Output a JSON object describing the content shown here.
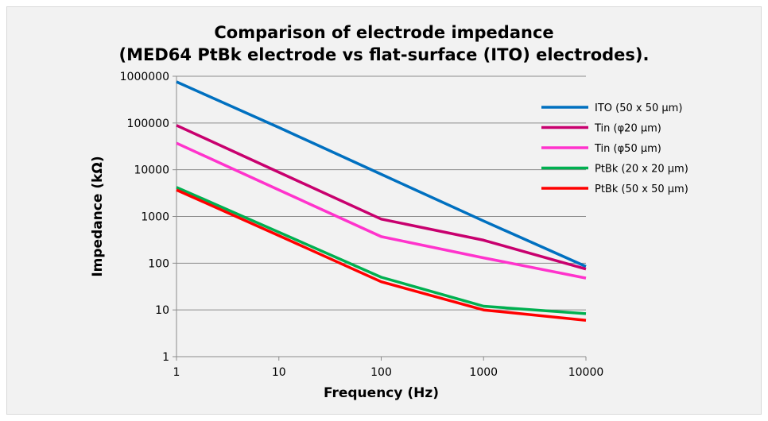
{
  "chart_data": {
    "type": "line",
    "title": [
      "Comparison of electrode impedance",
      "(MED64 PtBk electrode vs flat-surface (ITO) electrodes)."
    ],
    "xlabel": "Frequency (Hz)",
    "ylabel": "Impedance (kΩ)",
    "xscale": "log",
    "yscale": "log",
    "xlim": [
      1,
      10000
    ],
    "ylim": [
      1,
      1000000
    ],
    "x_ticks": [
      "1",
      "10",
      "100",
      "1000",
      "10000"
    ],
    "y_ticks": [
      "1",
      "10",
      "100",
      "1000",
      "10000",
      "100000",
      "1000000"
    ],
    "grid": "horizontal",
    "legend_position": "right",
    "x": [
      1,
      10,
      100,
      1000,
      10000
    ],
    "series": [
      {
        "name": "ITO (50 x 50 µm)",
        "color": "#0070c0",
        "values": [
          760000,
          80000,
          8000,
          800,
          85
        ]
      },
      {
        "name": "Tin (φ20 µm)",
        "color": "#c8006e",
        "values": [
          89000,
          8800,
          880,
          310,
          75
        ]
      },
      {
        "name": "Tin (φ50 µm)",
        "color": "#ff33cc",
        "values": [
          37000,
          3700,
          370,
          130,
          48
        ]
      },
      {
        "name": "PtBk (20 x 20 µm)",
        "color": "#00b050",
        "values": [
          4200,
          460,
          50,
          12,
          8.3
        ]
      },
      {
        "name": "PtBk (50 x 50 µm)",
        "color": "#ff0000",
        "values": [
          3700,
          390,
          40,
          10,
          6
        ]
      }
    ]
  }
}
